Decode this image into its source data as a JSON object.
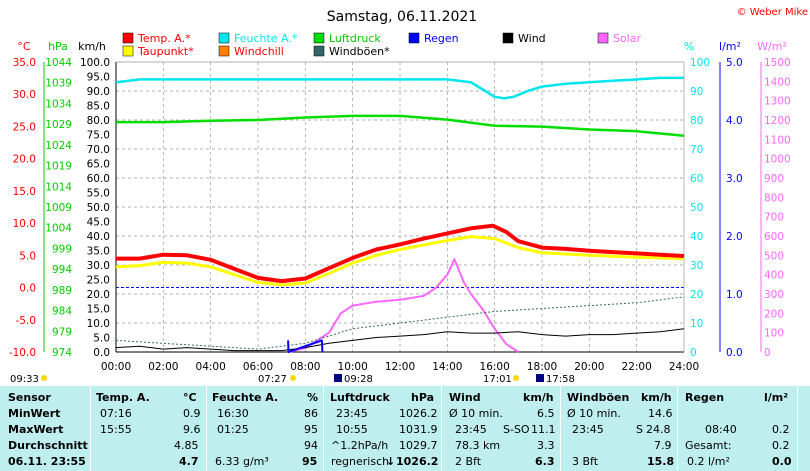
{
  "title": "Samstag, 06.11.2021",
  "copyright": "© Weber Mike",
  "units": {
    "temp": "°C",
    "hpa": "hPa",
    "kmh": "km/h",
    "pct": "%",
    "lm2": "l/m²",
    "wm2": "W/m²"
  },
  "legend": [
    {
      "label": "Temp. A.*",
      "color": "#ff0000"
    },
    {
      "label": "Feuchte A.*",
      "color": "#00e5ee"
    },
    {
      "label": "Luftdruck",
      "color": "#00dd00"
    },
    {
      "label": "Regen",
      "color": "#0000ff"
    },
    {
      "label": "Wind",
      "color": "#000000"
    },
    {
      "label": "Solar",
      "color": "#ff66ff"
    },
    {
      "label": "Taupunkt*",
      "color": "#ffff00"
    },
    {
      "label": "Windchill",
      "color": "#ff7f00"
    },
    {
      "label": "Windböen*",
      "color": "#336666"
    }
  ],
  "chart_data": {
    "type": "line",
    "x_ticks": [
      "00:00",
      "02:00",
      "04:00",
      "06:00",
      "08:00",
      "10:00",
      "12:00",
      "14:00",
      "16:00",
      "18:00",
      "20:00",
      "22:00",
      "24:00"
    ],
    "axis_ticks": {
      "temp": [
        "35.0",
        "30.0",
        "25.0",
        "20.0",
        "15.0",
        "10.0",
        "5.0",
        "0.0",
        "-5.0",
        "-10.0"
      ],
      "hpa": [
        "1044",
        "1039",
        "1034",
        "1029",
        "1024",
        "1019",
        "1014",
        "1009",
        "1004",
        "999",
        "994",
        "989",
        "984",
        "979",
        "974"
      ],
      "kmh": [
        "100.0",
        "95.0",
        "90.0",
        "85.0",
        "80.0",
        "75.0",
        "70.0",
        "65.0",
        "60.0",
        "55.0",
        "50.0",
        "45.0",
        "40.0",
        "35.0",
        "30.0",
        "25.0",
        "20.0",
        "15.0",
        "10.0",
        "5.0",
        "0.0"
      ],
      "pct": [
        "100",
        "90",
        "80",
        "70",
        "60",
        "50",
        "40",
        "30",
        "20",
        "10",
        "0"
      ],
      "lm2": [
        "5.0",
        "4.0",
        "3.0",
        "2.0",
        "1.0",
        "0.0"
      ],
      "wm2": [
        "1500",
        "1400",
        "1300",
        "1200",
        "1100",
        "1000",
        "900",
        "800",
        "700",
        "600",
        "500",
        "400",
        "300",
        "200",
        "100",
        "0"
      ]
    },
    "series": [
      {
        "name": "Temp. A.*",
        "axis": "temp",
        "color": "#ff0000",
        "x": [
          0,
          1,
          2,
          3,
          4,
          5,
          6,
          7,
          8,
          9,
          10,
          11,
          12,
          13,
          14,
          15,
          15.92,
          16.5,
          17,
          18,
          19,
          20,
          21,
          22,
          23,
          24
        ],
        "y": [
          4.5,
          4.5,
          5.1,
          5.0,
          4.3,
          2.9,
          1.5,
          1.0,
          1.4,
          3.0,
          4.6,
          5.9,
          6.7,
          7.6,
          8.4,
          9.2,
          9.6,
          8.6,
          7.2,
          6.2,
          6.0,
          5.7,
          5.5,
          5.3,
          5.1,
          4.9
        ]
      },
      {
        "name": "Taupunkt*",
        "axis": "temp",
        "color": "#ffff00",
        "x": [
          0,
          1,
          2,
          3,
          4,
          5,
          6,
          7,
          8,
          9,
          10,
          11,
          12,
          13,
          14,
          15,
          16,
          17,
          18,
          20,
          22,
          24
        ],
        "y": [
          3.2,
          3.4,
          3.9,
          3.8,
          3.2,
          2.0,
          0.8,
          0.4,
          0.7,
          2.2,
          3.8,
          5.0,
          5.9,
          6.6,
          7.3,
          7.9,
          7.6,
          6.2,
          5.4,
          5.0,
          4.7,
          4.5
        ]
      },
      {
        "name": "Feuchte A.*",
        "axis": "pct",
        "color": "#00e5ee",
        "x": [
          0,
          1,
          2,
          3,
          4,
          5,
          6,
          7,
          8,
          9,
          10,
          11,
          12,
          13,
          14,
          15,
          15.6,
          16,
          16.4,
          16.8,
          17.4,
          18,
          19,
          20,
          21,
          22,
          23,
          24
        ],
        "y": [
          93,
          94,
          94,
          94,
          94,
          94,
          94,
          94,
          94,
          94,
          94,
          94,
          94,
          94,
          94,
          93,
          90,
          88,
          87.5,
          88,
          90,
          91.5,
          92.5,
          93,
          93.5,
          94,
          94.5,
          94.5
        ]
      },
      {
        "name": "Luftdruck",
        "axis": "hpa",
        "color": "#00dd00",
        "x": [
          0,
          2,
          4,
          6,
          8,
          10,
          12,
          14,
          16,
          18,
          20,
          22,
          24
        ],
        "y": [
          1029.5,
          1029.5,
          1029.8,
          1030.0,
          1030.6,
          1031.0,
          1031.0,
          1030.1,
          1028.6,
          1028.4,
          1027.7,
          1027.3,
          1026.2
        ]
      },
      {
        "name": "Solar",
        "axis": "wm2",
        "color": "#ff66ff",
        "x": [
          7.27,
          8,
          9,
          9.5,
          10,
          11,
          12,
          13,
          13.5,
          14,
          14.3,
          14.7,
          15,
          15.5,
          16,
          16.5,
          17.01
        ],
        "y": [
          0,
          20,
          100,
          200,
          240,
          260,
          270,
          290,
          330,
          400,
          480,
          360,
          300,
          220,
          120,
          40,
          0
        ]
      },
      {
        "name": "Wind",
        "axis": "kmh",
        "color": "#000000",
        "x": [
          0,
          1,
          2,
          3,
          4,
          5,
          6,
          7,
          8,
          9,
          10,
          11,
          12,
          13,
          14,
          15,
          16,
          17,
          18,
          19,
          20,
          21,
          22,
          23,
          24
        ],
        "y": [
          1.5,
          2,
          1,
          1.5,
          1,
          0.5,
          0.5,
          0.5,
          1.5,
          3,
          4,
          5,
          5.5,
          6,
          7,
          6.5,
          6.5,
          7,
          6,
          5.5,
          6,
          6,
          6.5,
          7,
          8
        ]
      },
      {
        "name": "Windböen*",
        "axis": "kmh",
        "color": "#336666",
        "x": [
          0,
          2,
          4,
          6,
          8,
          10,
          12,
          14,
          16,
          18,
          20,
          22,
          24
        ],
        "y": [
          4,
          3,
          2,
          1,
          3,
          8,
          10,
          12,
          14,
          15,
          16,
          17,
          19
        ]
      },
      {
        "name": "Regen",
        "axis": "lm2",
        "color": "#0000ff",
        "x": [
          7.27,
          7.29,
          8.7,
          8.72
        ],
        "y": [
          0.2,
          0,
          0.2,
          0
        ]
      }
    ],
    "reference_lines": {
      "frost_level_c": 0.0
    },
    "grid": true
  },
  "sun": {
    "day_left": "09:33",
    "sunrise": "07:27",
    "sunset": "17:01",
    "moonrise": "09:28",
    "moonset": "17:58"
  },
  "table": {
    "headers": [
      "Sensor",
      "Temp. A.",
      "°C",
      "Feuchte A.",
      "%",
      "Luftdruck",
      "hPa",
      "Wind",
      "km/h",
      "Windböen",
      "km/h",
      "Regen",
      "l/m²"
    ],
    "rows": [
      {
        "label": "MinWert",
        "temp_time": "07:16",
        "temp_val": "0.9",
        "hum_time": "16:30",
        "hum_val": "86",
        "press_time": "23:45",
        "press_val": "1026.2",
        "wind_time": "Ø 10 min.",
        "wind_val": "6.5",
        "gust_time": "Ø 10 min.",
        "gust_val": "14.6",
        "rain_time": "",
        "rain_val": ""
      },
      {
        "label": "MaxWert",
        "temp_time": "15:55",
        "temp_val": "9.6",
        "hum_time": "01:25",
        "hum_val": "95",
        "press_time": "10:55",
        "press_val": "1031.9",
        "wind_time": "23:45",
        "wind_dir": "S-SO",
        "wind_val": "11.1",
        "gust_time": "23:45",
        "gust_dir": "S",
        "gust_val": "24.8",
        "rain_time": "08:40",
        "rain_val": "0.2"
      },
      {
        "label": "Durchschnitt",
        "temp_time": "",
        "temp_val": "4.85",
        "hum_time": "",
        "hum_val": "94",
        "press_time": "^1.2hPa/h",
        "press_val": "1029.7",
        "wind_time": "78.3 km",
        "wind_val": "3.3",
        "gust_time": "",
        "gust_val": "7.9",
        "rain_time": "Gesamt:",
        "rain_val": "0.2"
      },
      {
        "label": "06.11. 23:55",
        "temp_time": "",
        "temp_val": "4.7",
        "hum_time": "6.33 g/m³",
        "hum_val": "95",
        "press_time": "regnerisch",
        "press_arrow": "↓",
        "press_val": "1026.2",
        "wind_time": "2 Bft",
        "wind_val": "6.3",
        "gust_time": "3 Bft",
        "gust_val": "15.8",
        "rain_time": "0.2 l/m²",
        "rain_val": "0.0"
      }
    ]
  }
}
